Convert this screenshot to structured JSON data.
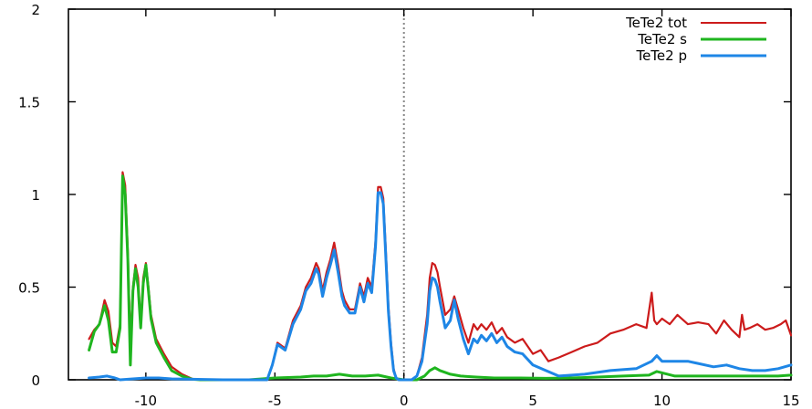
{
  "chart_data": {
    "type": "line",
    "title": "",
    "xlabel": "",
    "ylabel": "",
    "xlim": [
      -13,
      15
    ],
    "ylim": [
      0,
      2
    ],
    "xticks": [
      -10,
      -5,
      0,
      5,
      10,
      15
    ],
    "xtick_labels": [
      "-10",
      "-5",
      "0",
      "5",
      "10",
      "15"
    ],
    "yticks": [
      0,
      0.5,
      1,
      1.5,
      2
    ],
    "ytick_labels": [
      "0",
      "0.5",
      "1",
      "1.5",
      "2"
    ],
    "grid": false,
    "legend_position": "top-right",
    "vertical_reference_x": 0,
    "series": [
      {
        "name": "TeTe2 tot",
        "color": "#cc1b1b",
        "x": [
          -12.2,
          -12.0,
          -11.8,
          -11.6,
          -11.45,
          -11.3,
          -11.15,
          -11.0,
          -10.9,
          -10.8,
          -10.7,
          -10.6,
          -10.5,
          -10.4,
          -10.3,
          -10.2,
          -10.1,
          -10.0,
          -9.9,
          -9.8,
          -9.6,
          -9.3,
          -9.0,
          -8.6,
          -8.2,
          -7.9,
          -7.0,
          -6.0,
          -5.3,
          -5.1,
          -4.9,
          -4.6,
          -4.3,
          -4.0,
          -3.8,
          -3.6,
          -3.4,
          -3.3,
          -3.15,
          -3.0,
          -2.85,
          -2.7,
          -2.55,
          -2.4,
          -2.3,
          -2.1,
          -1.9,
          -1.7,
          -1.55,
          -1.4,
          -1.25,
          -1.1,
          -1.0,
          -0.9,
          -0.8,
          -0.7,
          -0.6,
          -0.5,
          -0.4,
          -0.3,
          -0.2,
          0.0,
          0.3,
          0.5,
          0.7,
          0.9,
          1.0,
          1.1,
          1.2,
          1.3,
          1.4,
          1.6,
          1.8,
          1.95,
          2.1,
          2.3,
          2.5,
          2.7,
          2.85,
          3.0,
          3.2,
          3.4,
          3.6,
          3.8,
          4.0,
          4.3,
          4.6,
          5.0,
          5.3,
          5.6,
          6.0,
          6.5,
          7.0,
          7.5,
          8.0,
          8.5,
          9.0,
          9.4,
          9.6,
          9.7,
          9.8,
          10.0,
          10.3,
          10.6,
          11.0,
          11.4,
          11.8,
          12.1,
          12.4,
          12.7,
          13.0,
          13.1,
          13.2,
          13.4,
          13.7,
          14.0,
          14.3,
          14.6,
          14.8,
          15.0
        ],
        "values": [
          0.22,
          0.27,
          0.3,
          0.43,
          0.37,
          0.2,
          0.18,
          0.3,
          1.12,
          1.05,
          0.7,
          0.2,
          0.5,
          0.62,
          0.55,
          0.3,
          0.55,
          0.63,
          0.5,
          0.35,
          0.22,
          0.14,
          0.07,
          0.03,
          0.005,
          0.0,
          0.0,
          0.0,
          0.0,
          0.08,
          0.2,
          0.17,
          0.32,
          0.4,
          0.5,
          0.55,
          0.63,
          0.6,
          0.48,
          0.58,
          0.65,
          0.74,
          0.62,
          0.48,
          0.43,
          0.38,
          0.38,
          0.52,
          0.45,
          0.55,
          0.5,
          0.75,
          1.04,
          1.04,
          0.98,
          0.7,
          0.4,
          0.2,
          0.06,
          0.01,
          0.0,
          0.0,
          0.0,
          0.02,
          0.12,
          0.35,
          0.55,
          0.63,
          0.62,
          0.58,
          0.5,
          0.35,
          0.38,
          0.45,
          0.38,
          0.28,
          0.2,
          0.3,
          0.27,
          0.3,
          0.27,
          0.31,
          0.25,
          0.28,
          0.23,
          0.2,
          0.22,
          0.14,
          0.16,
          0.1,
          0.12,
          0.15,
          0.18,
          0.2,
          0.25,
          0.27,
          0.3,
          0.28,
          0.47,
          0.32,
          0.3,
          0.33,
          0.3,
          0.35,
          0.3,
          0.31,
          0.3,
          0.25,
          0.32,
          0.27,
          0.23,
          0.35,
          0.27,
          0.28,
          0.3,
          0.27,
          0.28,
          0.3,
          0.32,
          0.24
        ]
      },
      {
        "name": "TeTe2 s",
        "color": "#1fb51f",
        "x": [
          -12.2,
          -12.0,
          -11.8,
          -11.6,
          -11.45,
          -11.3,
          -11.15,
          -11.0,
          -10.9,
          -10.8,
          -10.7,
          -10.6,
          -10.5,
          -10.4,
          -10.3,
          -10.2,
          -10.1,
          -10.0,
          -9.9,
          -9.8,
          -9.6,
          -9.3,
          -9.0,
          -8.6,
          -8.2,
          -7.9,
          -7.0,
          -6.0,
          -5.0,
          -4.0,
          -3.5,
          -3.0,
          -2.5,
          -2.0,
          -1.5,
          -1.0,
          -0.5,
          0.0,
          0.5,
          0.8,
          1.0,
          1.2,
          1.4,
          1.6,
          1.8,
          2.2,
          2.8,
          3.5,
          4.5,
          5.5,
          6.5,
          7.5,
          8.5,
          9.5,
          9.8,
          10.5,
          11.5,
          12.5,
          13.5,
          14.5,
          15.0
        ],
        "values": [
          0.16,
          0.26,
          0.3,
          0.4,
          0.32,
          0.15,
          0.15,
          0.28,
          1.1,
          1.0,
          0.65,
          0.08,
          0.48,
          0.6,
          0.5,
          0.28,
          0.52,
          0.62,
          0.48,
          0.33,
          0.2,
          0.12,
          0.05,
          0.02,
          0.003,
          0.0,
          0.0,
          0.0,
          0.01,
          0.015,
          0.02,
          0.02,
          0.03,
          0.02,
          0.02,
          0.025,
          0.01,
          0.0,
          0.0,
          0.02,
          0.05,
          0.065,
          0.05,
          0.04,
          0.03,
          0.02,
          0.015,
          0.01,
          0.01,
          0.008,
          0.01,
          0.015,
          0.02,
          0.025,
          0.045,
          0.02,
          0.02,
          0.02,
          0.02,
          0.02,
          0.025
        ]
      },
      {
        "name": "TeTe2 p",
        "color": "#1e86e6",
        "x": [
          -12.2,
          -11.8,
          -11.5,
          -11.2,
          -11.0,
          -10.5,
          -10.0,
          -9.5,
          -9.0,
          -7.0,
          -5.3,
          -5.1,
          -4.9,
          -4.6,
          -4.3,
          -4.0,
          -3.8,
          -3.6,
          -3.4,
          -3.3,
          -3.15,
          -3.0,
          -2.85,
          -2.7,
          -2.55,
          -2.4,
          -2.3,
          -2.1,
          -1.9,
          -1.7,
          -1.55,
          -1.4,
          -1.25,
          -1.1,
          -1.0,
          -0.9,
          -0.8,
          -0.7,
          -0.6,
          -0.5,
          -0.4,
          -0.3,
          -0.2,
          0.0,
          0.3,
          0.5,
          0.7,
          0.9,
          1.0,
          1.1,
          1.2,
          1.3,
          1.4,
          1.6,
          1.8,
          1.95,
          2.1,
          2.3,
          2.5,
          2.7,
          2.85,
          3.0,
          3.2,
          3.4,
          3.6,
          3.8,
          4.0,
          4.3,
          4.6,
          5.0,
          5.5,
          6.0,
          7.0,
          8.0,
          9.0,
          9.6,
          9.8,
          10.0,
          11.0,
          12.0,
          12.5,
          13.0,
          13.5,
          14.0,
          14.5,
          15.0
        ],
        "values": [
          0.01,
          0.015,
          0.02,
          0.01,
          0.0,
          0.005,
          0.01,
          0.01,
          0.005,
          0.0,
          0.0,
          0.08,
          0.19,
          0.16,
          0.3,
          0.38,
          0.48,
          0.52,
          0.6,
          0.57,
          0.45,
          0.55,
          0.62,
          0.7,
          0.58,
          0.45,
          0.4,
          0.36,
          0.36,
          0.5,
          0.42,
          0.52,
          0.47,
          0.72,
          1.01,
          1.01,
          0.95,
          0.66,
          0.37,
          0.18,
          0.05,
          0.01,
          0.0,
          0.0,
          0.0,
          0.02,
          0.1,
          0.3,
          0.48,
          0.55,
          0.54,
          0.5,
          0.42,
          0.28,
          0.32,
          0.43,
          0.33,
          0.22,
          0.14,
          0.22,
          0.2,
          0.24,
          0.21,
          0.25,
          0.2,
          0.23,
          0.18,
          0.15,
          0.14,
          0.08,
          0.05,
          0.02,
          0.03,
          0.05,
          0.06,
          0.1,
          0.13,
          0.1,
          0.1,
          0.07,
          0.08,
          0.06,
          0.05,
          0.05,
          0.06,
          0.08
        ]
      }
    ]
  }
}
